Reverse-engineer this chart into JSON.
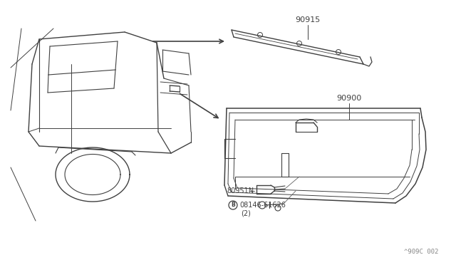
{
  "bg_color": "#ffffff",
  "line_color": "#404040",
  "text_color": "#404040",
  "fig_width": 6.4,
  "fig_height": 3.72,
  "diagram_note": "^909C 002"
}
